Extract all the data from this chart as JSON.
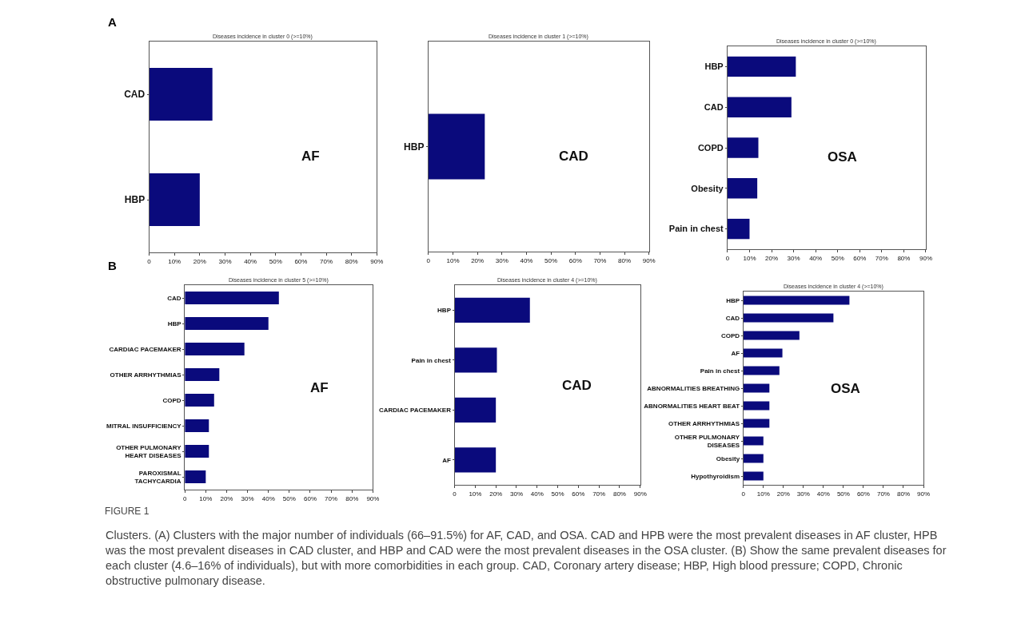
{
  "chart_data": [
    {
      "type": "bar",
      "orientation": "horizontal",
      "title": "Diseases incidence in cluster 0 (>=10%)",
      "categories": [
        "CAD",
        "HBP"
      ],
      "values": [
        25,
        20
      ],
      "color": "#0a0a7c",
      "xlim": [
        0,
        90
      ],
      "xticks": [
        0,
        {
          "value": 10,
          "label": "10%"
        },
        {
          "value": 20,
          "label": "20%"
        },
        {
          "value": 30,
          "label": "30%"
        },
        {
          "value": 40,
          "label": "40%"
        },
        {
          "value": 50,
          "label": "50%"
        },
        {
          "value": 60,
          "label": "60%"
        },
        {
          "value": 70,
          "label": "70%"
        },
        {
          "value": 80,
          "label": "80%"
        },
        {
          "value": 90,
          "label": "90%"
        }
      ],
      "grid": false,
      "legend": false,
      "annotations": [
        "A",
        "AF"
      ]
    },
    {
      "type": "bar",
      "orientation": "horizontal",
      "title": "Diseases incidence in cluster 1 (>=10%)",
      "categories": [
        "HBP"
      ],
      "values": [
        23
      ],
      "color": "#0a0a7c",
      "xlim": [
        0,
        90
      ],
      "xticks": [
        0,
        {
          "value": 10,
          "label": "10%"
        },
        {
          "value": 20,
          "label": "20%"
        },
        {
          "value": 30,
          "label": "30%"
        },
        {
          "value": 40,
          "label": "40%"
        },
        {
          "value": 50,
          "label": "50%"
        },
        {
          "value": 60,
          "label": "60%"
        },
        {
          "value": 70,
          "label": "70%"
        },
        {
          "value": 80,
          "label": "80%"
        },
        {
          "value": 90,
          "label": "90%"
        }
      ],
      "grid": false,
      "legend": false,
      "annotations": [
        "CAD"
      ]
    },
    {
      "type": "bar",
      "orientation": "horizontal",
      "title": "Diseases incidence in cluster 0 (>=10%)",
      "categories": [
        "HBP",
        "CAD",
        "COPD",
        "Obesity",
        "Pain in chest"
      ],
      "values": [
        31,
        29,
        14,
        13.5,
        10
      ],
      "color": "#0a0a7c",
      "xlim": [
        0,
        90
      ],
      "xticks": [
        0,
        {
          "value": 10,
          "label": "10%"
        },
        {
          "value": 20,
          "label": "20%"
        },
        {
          "value": 30,
          "label": "30%"
        },
        {
          "value": 40,
          "label": "40%"
        },
        {
          "value": 50,
          "label": "50%"
        },
        {
          "value": 60,
          "label": "60%"
        },
        {
          "value": 70,
          "label": "70%"
        },
        {
          "value": 80,
          "label": "80%"
        },
        {
          "value": 90,
          "label": "90%"
        }
      ],
      "grid": false,
      "legend": false,
      "annotations": [
        "OSA"
      ]
    },
    {
      "type": "bar",
      "orientation": "horizontal",
      "title": "Diseases incidence in cluster 5 (>=10%)",
      "categories": [
        "CAD",
        "HBP",
        "CARDIAC PACEMAKER",
        "OTHER ARRHYTHMIAS",
        "COPD",
        "MITRAL INSUFFICIENCY",
        "OTHER PULMONARY\nHEART DISEASES",
        "PAROXISMAL\nTACHYCARDIA"
      ],
      "values": [
        45,
        40,
        28.5,
        16.5,
        14,
        11.5,
        11.5,
        10
      ],
      "color": "#0a0a7c",
      "xlim": [
        0,
        90
      ],
      "xticks": [
        0,
        {
          "value": 10,
          "label": "10%"
        },
        {
          "value": 20,
          "label": "20%"
        },
        {
          "value": 30,
          "label": "30%"
        },
        {
          "value": 40,
          "label": "40%"
        },
        {
          "value": 50,
          "label": "50%"
        },
        {
          "value": 60,
          "label": "60%"
        },
        {
          "value": 70,
          "label": "70%"
        },
        {
          "value": 80,
          "label": "80%"
        },
        {
          "value": 90,
          "label": "90%"
        }
      ],
      "grid": false,
      "legend": false,
      "annotations": [
        "B",
        "AF"
      ]
    },
    {
      "type": "bar",
      "orientation": "horizontal",
      "title": "Diseases incidence in cluster 4 (>=10%)",
      "categories": [
        "HBP",
        "Pain in chest",
        "CARDIAC PACEMAKER",
        "AF"
      ],
      "values": [
        36.5,
        20.5,
        20,
        20
      ],
      "color": "#0a0a7c",
      "xlim": [
        0,
        90
      ],
      "xticks": [
        0,
        {
          "value": 10,
          "label": "10%"
        },
        {
          "value": 20,
          "label": "20%"
        },
        {
          "value": 30,
          "label": "30%"
        },
        {
          "value": 40,
          "label": "40%"
        },
        {
          "value": 50,
          "label": "50%"
        },
        {
          "value": 60,
          "label": "60%"
        },
        {
          "value": 70,
          "label": "70%"
        },
        {
          "value": 80,
          "label": "80%"
        },
        {
          "value": 90,
          "label": "90%"
        }
      ],
      "grid": false,
      "legend": false,
      "annotations": [
        "CAD"
      ]
    },
    {
      "type": "bar",
      "orientation": "horizontal",
      "title": "Diseases incidence in cluster 4 (>=10%)",
      "categories": [
        "HBP",
        "CAD",
        "COPD",
        "AF",
        "Pain in chest",
        "ABNORMALITIES BREATHING",
        "ABNORMALITIES HEART BEAT",
        "OTHER ARRHYTHMIAS",
        "OTHER PULMONARY\nDISEASES",
        "Obesity",
        "Hypothyroidism"
      ],
      "values": [
        53,
        45,
        28,
        19.5,
        18,
        13,
        13,
        13,
        10,
        10,
        10
      ],
      "color": "#0a0a7c",
      "xlim": [
        0,
        90
      ],
      "xticks": [
        0,
        {
          "value": 10,
          "label": "10%"
        },
        {
          "value": 20,
          "label": "20%"
        },
        {
          "value": 30,
          "label": "30%"
        },
        {
          "value": 40,
          "label": "40%"
        },
        {
          "value": 50,
          "label": "50%"
        },
        {
          "value": 60,
          "label": "60%"
        },
        {
          "value": 70,
          "label": "70%"
        },
        {
          "value": 80,
          "label": "80%"
        },
        {
          "value": 90,
          "label": "90%"
        }
      ],
      "grid": false,
      "legend": false,
      "annotations": [
        "OSA"
      ]
    },
    {
      "type": "other",
      "title": "FIGURE 1",
      "annotations": [
        "Clusters. (A) Clusters with the major number of individuals (66–91.5%) for AF, CAD, and OSA. CAD and HPB were the most prevalent diseases in AF cluster, HPB was the most prevalent diseases in CAD cluster, and HBP and CAD were the most prevalent diseases in the OSA cluster. (B) Show the same prevalent diseases for each cluster (4.6–16% of individuals), but with more comorbidities in each group. CAD, Coronary artery disease; HBP, High blood pressure; COPD, Chronic obstructive pulmonary disease."
      ]
    }
  ]
}
